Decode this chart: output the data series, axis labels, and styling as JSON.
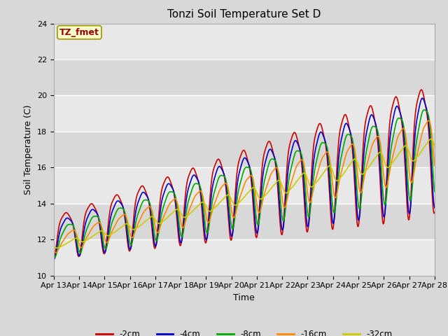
{
  "title": "Tonzi Soil Temperature Set D",
  "xlabel": "Time",
  "ylabel": "Soil Temperature (C)",
  "ylim": [
    10,
    24
  ],
  "xlim": [
    0,
    15
  ],
  "x_tick_labels": [
    "Apr 13",
    "Apr 14",
    "Apr 15",
    "Apr 16",
    "Apr 17",
    "Apr 18",
    "Apr 19",
    "Apr 20",
    "Apr 21",
    "Apr 22",
    "Apr 23",
    "Apr 24",
    "Apr 25",
    "Apr 26",
    "Apr 27",
    "Apr 28"
  ],
  "legend_labels": [
    "-2cm",
    "-4cm",
    "-8cm",
    "-16cm",
    "-32cm"
  ],
  "line_colors": [
    "#cc0000",
    "#0000cc",
    "#00aa00",
    "#ff8800",
    "#cccc00"
  ],
  "line_widths": [
    1.2,
    1.2,
    1.2,
    1.2,
    1.2
  ],
  "annotation_text": "TZ_fmet",
  "annotation_bgcolor": "#ffffcc",
  "annotation_textcolor": "#990000",
  "fig_bg_color": "#d8d8d8",
  "plot_bg_color": "#e8e8e8",
  "band_color_light": "#d8d8d8",
  "grid_color": "#ffffff",
  "title_fontsize": 11,
  "label_fontsize": 9,
  "tick_fontsize": 8
}
